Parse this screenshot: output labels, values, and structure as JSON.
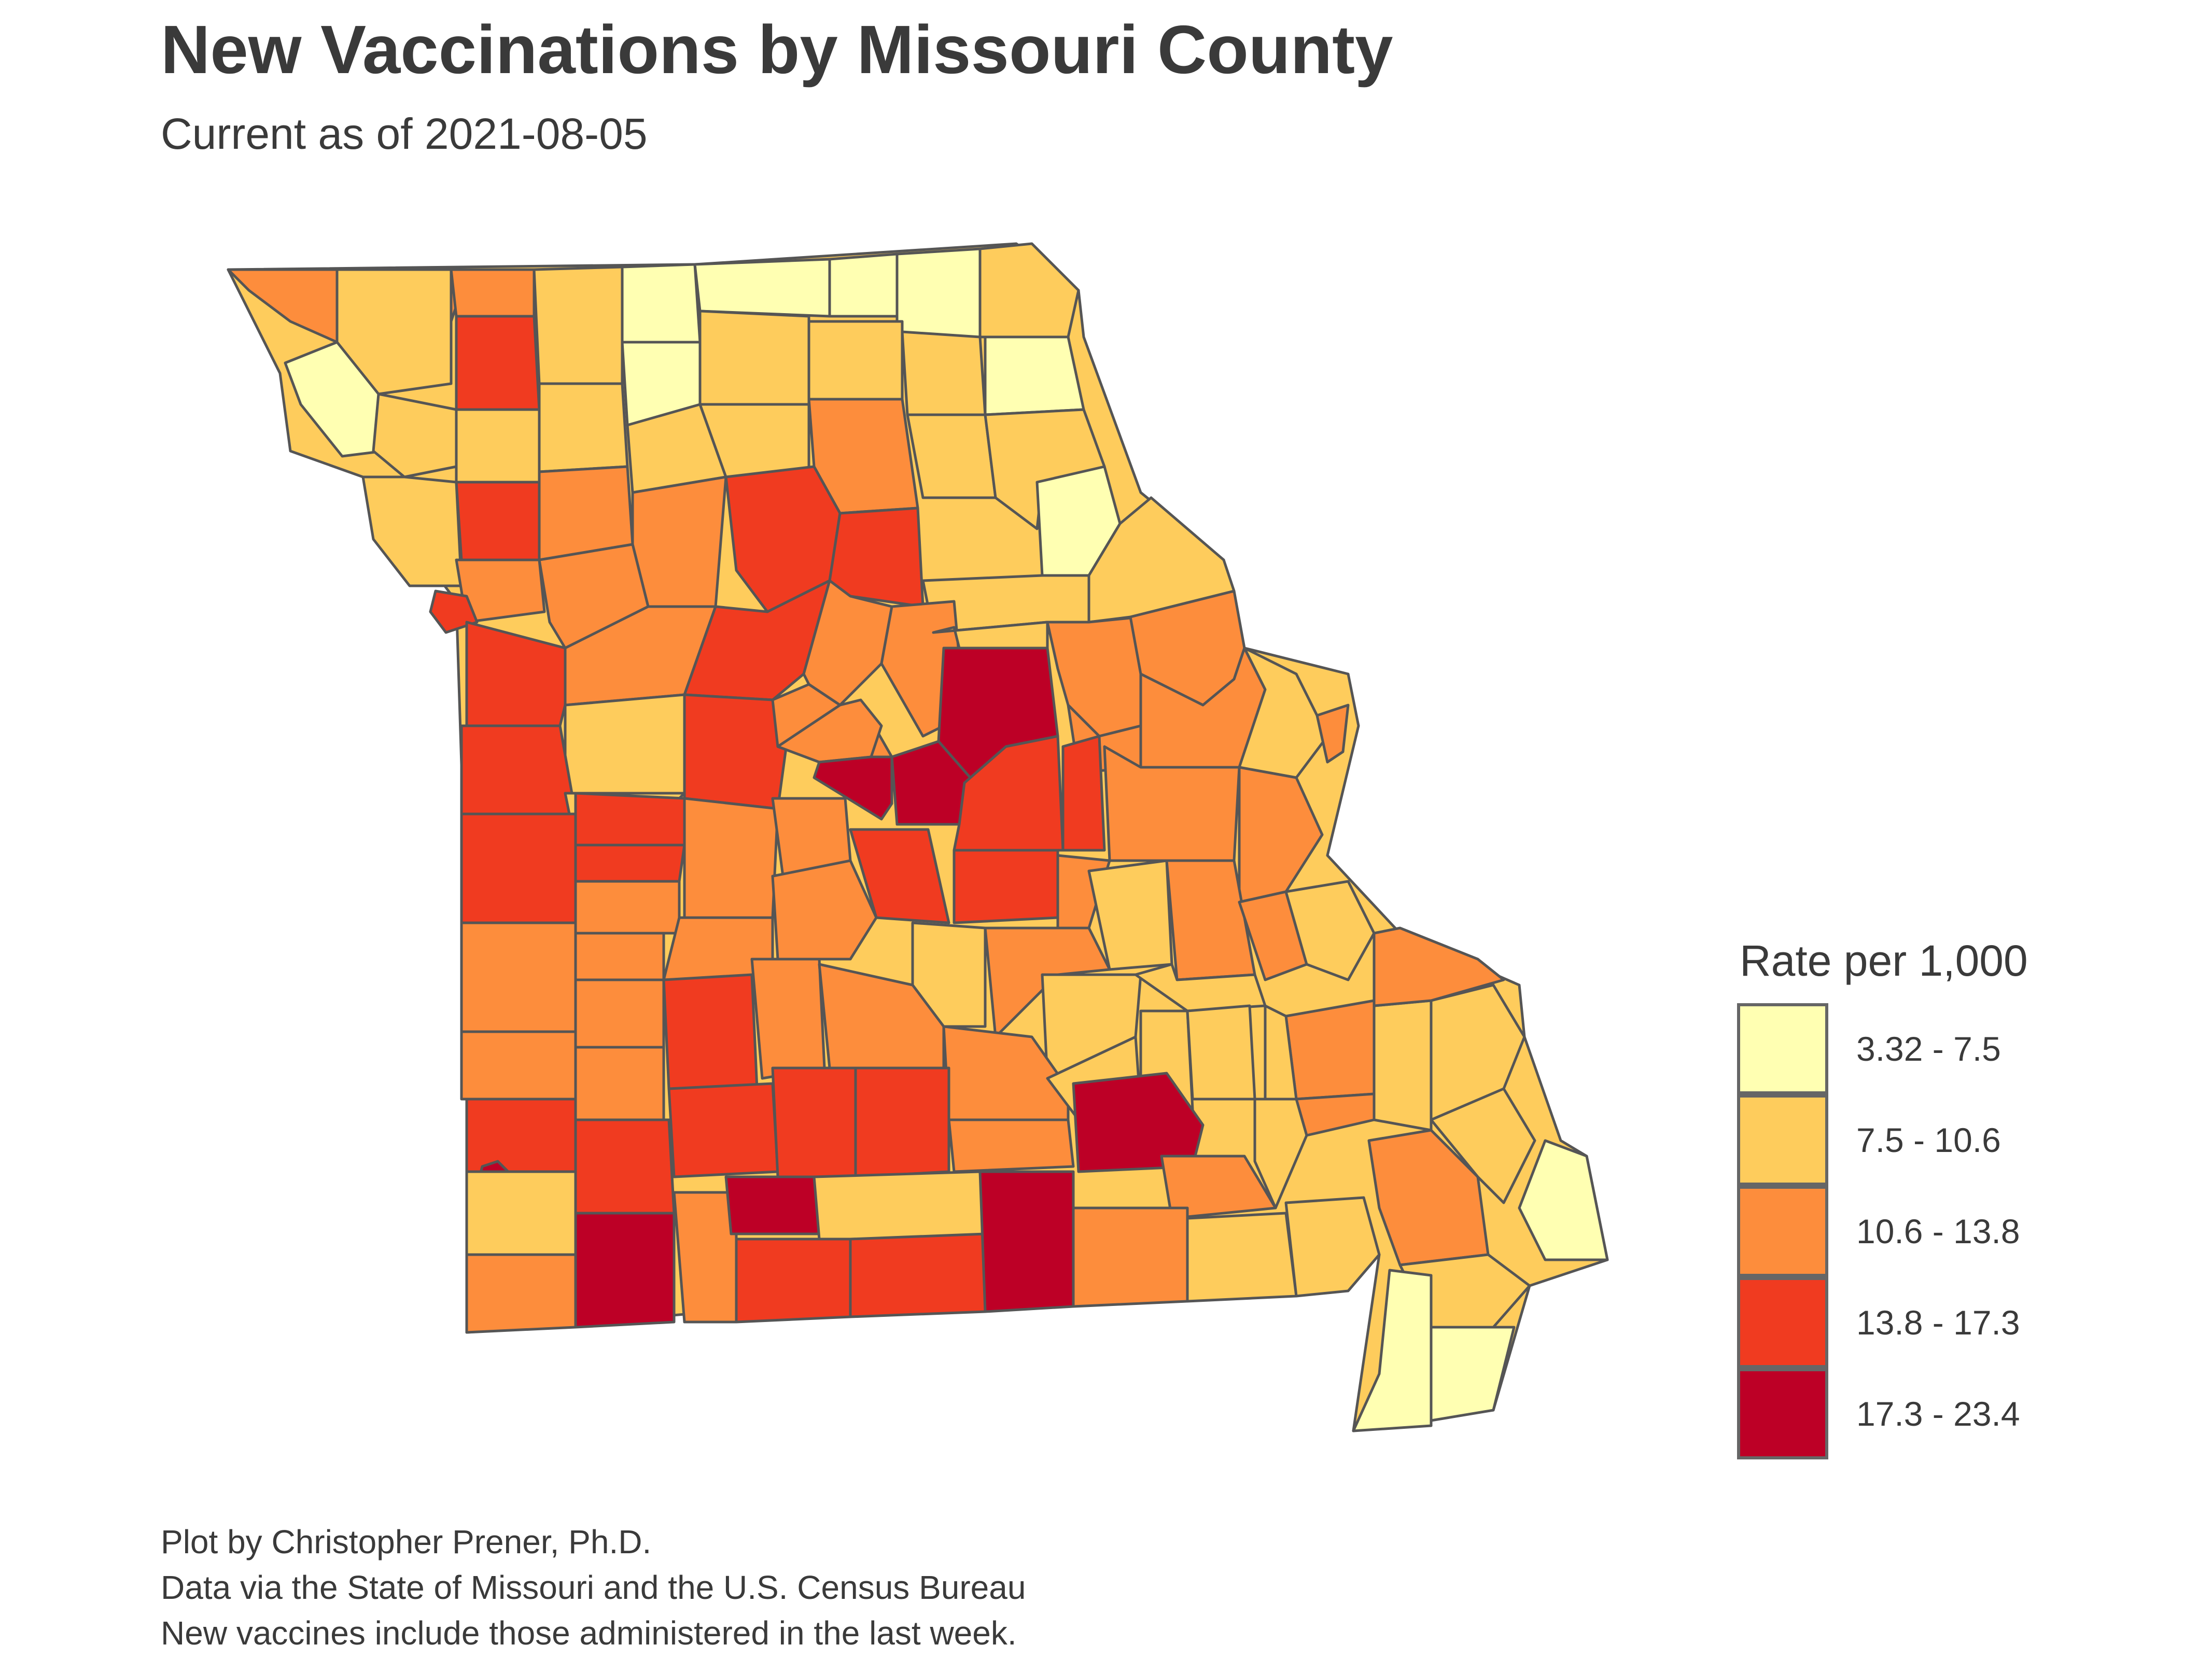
{
  "title": "New Vaccinations by Missouri County",
  "subtitle": "Current as of 2021-08-05",
  "legend": {
    "title": "Rate per 1,000",
    "bins": [
      {
        "label": "3.32 - 7.5",
        "color": "#ffffb2"
      },
      {
        "label": "7.5 - 10.6",
        "color": "#fecc5c"
      },
      {
        "label": "10.6 - 13.8",
        "color": "#fd8d3c"
      },
      {
        "label": "13.8 - 17.3",
        "color": "#f03b20"
      },
      {
        "label": "17.3 - 23.4",
        "color": "#bd0026"
      }
    ]
  },
  "map": {
    "region": "Missouri",
    "unit": "county",
    "border_color": "#555555"
  },
  "caption": [
    "Plot by Christopher Prener, Ph.D.",
    "Data via the State of Missouri and the U.S. Census Bureau",
    "New vaccines include those administered in the last week."
  ]
}
